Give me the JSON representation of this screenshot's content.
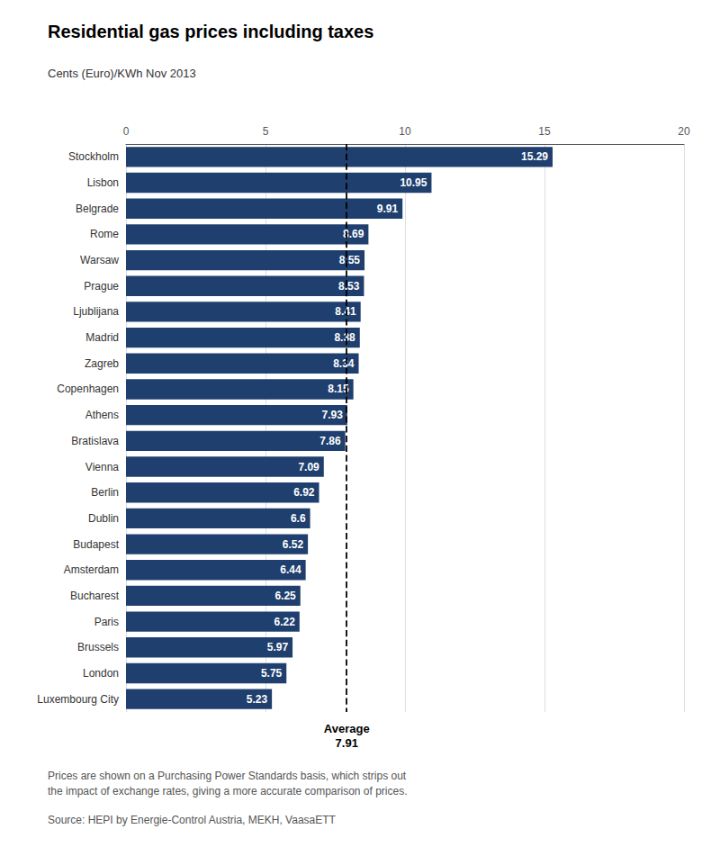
{
  "chart_data": {
    "type": "bar",
    "orientation": "horizontal",
    "title": "Residential gas prices including taxes",
    "subtitle": "Cents (Euro)/KWh Nov 2013",
    "categories": [
      "Stockholm",
      "Lisbon",
      "Belgrade",
      "Rome",
      "Warsaw",
      "Prague",
      "Ljublijana",
      "Madrid",
      "Zagreb",
      "Copenhagen",
      "Athens",
      "Bratislava",
      "Vienna",
      "Berlin",
      "Dublin",
      "Budapest",
      "Amsterdam",
      "Bucharest",
      "Paris",
      "Brussels",
      "London",
      "Luxembourg City"
    ],
    "values": [
      15.29,
      10.95,
      9.91,
      8.69,
      8.55,
      8.53,
      8.41,
      8.38,
      8.34,
      8.15,
      7.93,
      7.86,
      7.09,
      6.92,
      6.6,
      6.52,
      6.44,
      6.25,
      6.22,
      5.97,
      5.75,
      5.23
    ],
    "color": "#1f3f6e",
    "data_labels": true,
    "xlim": [
      0,
      20
    ],
    "xticks": [
      0,
      5,
      10,
      15,
      20
    ],
    "grid": true,
    "annotations": [
      {
        "x": 7.91,
        "text": "Average\n7.91",
        "line_style": "dashed"
      }
    ],
    "footnote": "Prices are shown on a Purchasing Power Standards basis, which strips out\nthe impact of exchange rates, giving a more accurate comparison of prices.",
    "source": "Source: HEPI by Energie-Control Austria, MEKH, VaasaETT"
  }
}
